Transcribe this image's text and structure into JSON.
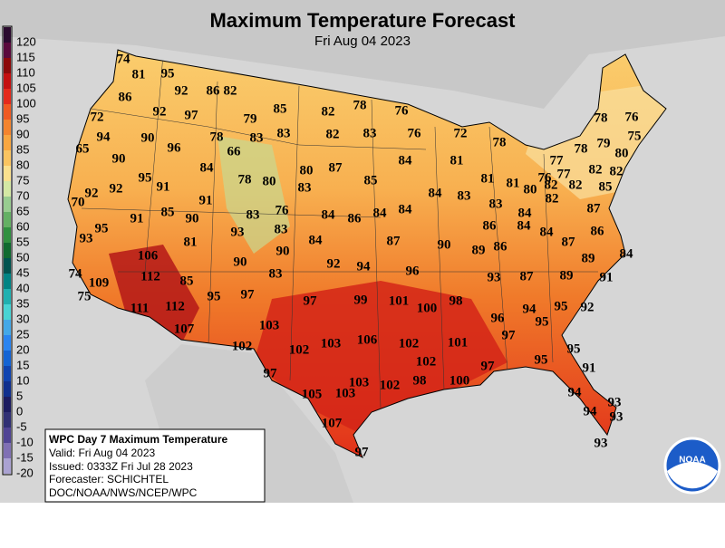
{
  "header": {
    "title": "Maximum Temperature Forecast",
    "subtitle": "Fri Aug 04 2023"
  },
  "legend": {
    "items": [
      {
        "value": 120,
        "color": "#2a0a2e"
      },
      {
        "value": 115,
        "color": "#5a0a3c"
      },
      {
        "value": 110,
        "color": "#8c0a0a"
      },
      {
        "value": 105,
        "color": "#c41010"
      },
      {
        "value": 100,
        "color": "#e42a1c"
      },
      {
        "value": 95,
        "color": "#f05a22"
      },
      {
        "value": 90,
        "color": "#f4842e"
      },
      {
        "value": 85,
        "color": "#f8a640"
      },
      {
        "value": 80,
        "color": "#fac460"
      },
      {
        "value": 75,
        "color": "#fae08e"
      },
      {
        "value": 70,
        "color": "#d4e8a4"
      },
      {
        "value": 65,
        "color": "#98cc90"
      },
      {
        "value": 60,
        "color": "#64b064"
      },
      {
        "value": 55,
        "color": "#309040"
      },
      {
        "value": 50,
        "color": "#106a30"
      },
      {
        "value": 45,
        "color": "#005450"
      },
      {
        "value": 40,
        "color": "#008484"
      },
      {
        "value": 35,
        "color": "#20b0b0"
      },
      {
        "value": 30,
        "color": "#48d4d4"
      },
      {
        "value": 25,
        "color": "#44a8e8"
      },
      {
        "value": 20,
        "color": "#2a84f0"
      },
      {
        "value": 15,
        "color": "#1464d4"
      },
      {
        "value": 10,
        "color": "#1044b0"
      },
      {
        "value": 5,
        "color": "#10308e"
      },
      {
        "value": 0,
        "color": "#1c1c60"
      },
      {
        "value": -5,
        "color": "#303074"
      },
      {
        "value": -10,
        "color": "#504494"
      },
      {
        "value": -15,
        "color": "#8070b4"
      },
      {
        "value": -20,
        "color": "#aaa2d2"
      }
    ]
  },
  "info": {
    "title": "WPC Day 7 Maximum Temperature",
    "lines": [
      "Valid: Fri Aug 04 2023",
      "Issued: 0333Z Fri Jul 28 2023",
      "Forecaster: SCHICHTEL",
      "DOC/NOAA/NWS/NCEP/WPC"
    ]
  },
  "logo": "NOAA",
  "map": {
    "labels": [
      74,
      81,
      95,
      92,
      86,
      82,
      86,
      72,
      92,
      97,
      79,
      85,
      82,
      78,
      76,
      94,
      90,
      96,
      78,
      83,
      83,
      82,
      83,
      76,
      72,
      78,
      78,
      76,
      65,
      90,
      66,
      84,
      80,
      87,
      85,
      84,
      81,
      75,
      78,
      79,
      80,
      77,
      82,
      82,
      95,
      91,
      78,
      80,
      83,
      81,
      81,
      80,
      76,
      77,
      82,
      82,
      85,
      70,
      92,
      92,
      91,
      84,
      83,
      83,
      84,
      82,
      87,
      91,
      85,
      90,
      83,
      76,
      84,
      86,
      84,
      84,
      95,
      83,
      86,
      84,
      84,
      86,
      93,
      81,
      93,
      84,
      87,
      90,
      89,
      86,
      87,
      106,
      90,
      90,
      92,
      94,
      96,
      89,
      84,
      74,
      112,
      85,
      83,
      93,
      87,
      89,
      91,
      75,
      109,
      112,
      95,
      97,
      97,
      99,
      101,
      100,
      98,
      94,
      95,
      95,
      92,
      111,
      107,
      103,
      96,
      97,
      102,
      102,
      103,
      106,
      102,
      101,
      95,
      102,
      97,
      95,
      91,
      97,
      103,
      102,
      98,
      100,
      105,
      103,
      94,
      93,
      94,
      93,
      107,
      97,
      93
    ]
  }
}
